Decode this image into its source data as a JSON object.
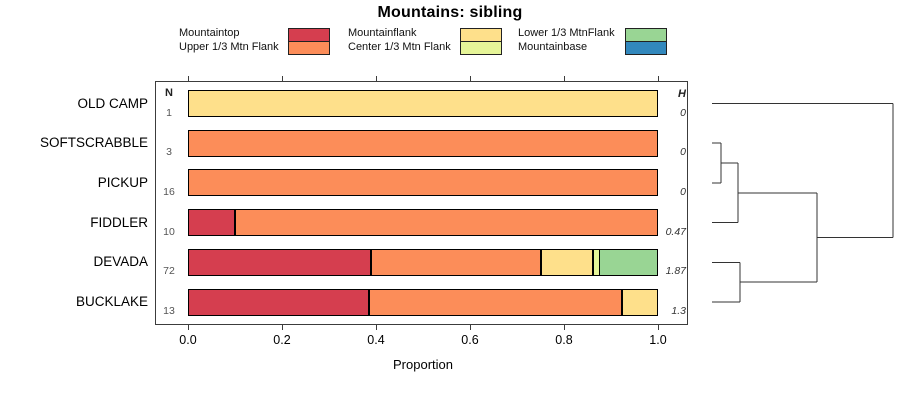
{
  "title": "Mountains: sibling",
  "legend": {
    "items": [
      {
        "label": "Mountaintop",
        "color": "#D53E4F"
      },
      {
        "label": "Upper 1/3 Mtn Flank",
        "color": "#FC8D59"
      },
      {
        "label": "Mountainflank",
        "color": "#FEE08B"
      },
      {
        "label": "Center 1/3 Mtn Flank",
        "color": "#E6F598"
      },
      {
        "label": "Lower 1/3 MtnFlank",
        "color": "#99D594"
      },
      {
        "label": "Mountainbase",
        "color": "#3288BD"
      }
    ]
  },
  "chart_data": {
    "type": "bar",
    "orientation": "horizontal",
    "stacked": true,
    "title": "Mountains: sibling",
    "xlabel": "Proportion",
    "xlim": [
      0,
      1
    ],
    "xticks": [
      0,
      0.2,
      0.4,
      0.6,
      0.8,
      1
    ],
    "xtick_labels": [
      "0.0",
      "0.2",
      "0.4",
      "0.6",
      "0.8",
      "1.0"
    ],
    "categories": [
      "OLD CAMP",
      "SOFTSCRABBLE",
      "PICKUP",
      "FIDDLER",
      "DEVADA",
      "BUCKLAKE"
    ],
    "n_header": "N",
    "h_header": "H",
    "n_values": [
      "1",
      "3",
      "16",
      "10",
      "72",
      "13"
    ],
    "h_values": [
      "0",
      "0",
      "0",
      "0.47",
      "1.87",
      "1.3"
    ],
    "series": [
      {
        "name": "Mountaintop",
        "color": "#D53E4F",
        "values": [
          0,
          0,
          0,
          0.1,
          0.389,
          0.385
        ]
      },
      {
        "name": "Upper 1/3 Mtn Flank",
        "color": "#FC8D59",
        "values": [
          0,
          1,
          1,
          0.9,
          0.361,
          0.538
        ]
      },
      {
        "name": "Mountainflank",
        "color": "#FEE08B",
        "values": [
          1,
          0,
          0,
          0,
          0.111,
          0.077
        ]
      },
      {
        "name": "Center 1/3 Mtn Flank",
        "color": "#E6F598",
        "values": [
          0,
          0,
          0,
          0,
          0.014,
          0
        ]
      },
      {
        "name": "Lower 1/3 MtnFlank",
        "color": "#99D594",
        "values": [
          0,
          0,
          0,
          0,
          0.125,
          0
        ]
      },
      {
        "name": "Mountainbase",
        "color": "#3288BD",
        "values": [
          0,
          0,
          0,
          0,
          0,
          0
        ]
      }
    ],
    "dendrogram": {
      "position": "right",
      "tree": {
        "height": 1.0,
        "children": [
          {
            "leaf": "OLD CAMP"
          },
          {
            "height": 0.58,
            "children": [
              {
                "height": 0.144,
                "children": [
                  {
                    "height": 0.05,
                    "children": [
                      {
                        "leaf": "SOFTSCRABBLE"
                      },
                      {
                        "leaf": "PICKUP"
                      }
                    ]
                  },
                  {
                    "leaf": "FIDDLER"
                  }
                ]
              },
              {
                "height": 0.155,
                "children": [
                  {
                    "leaf": "DEVADA"
                  },
                  {
                    "leaf": "BUCKLAKE"
                  }
                ]
              }
            ]
          }
        ]
      }
    }
  }
}
